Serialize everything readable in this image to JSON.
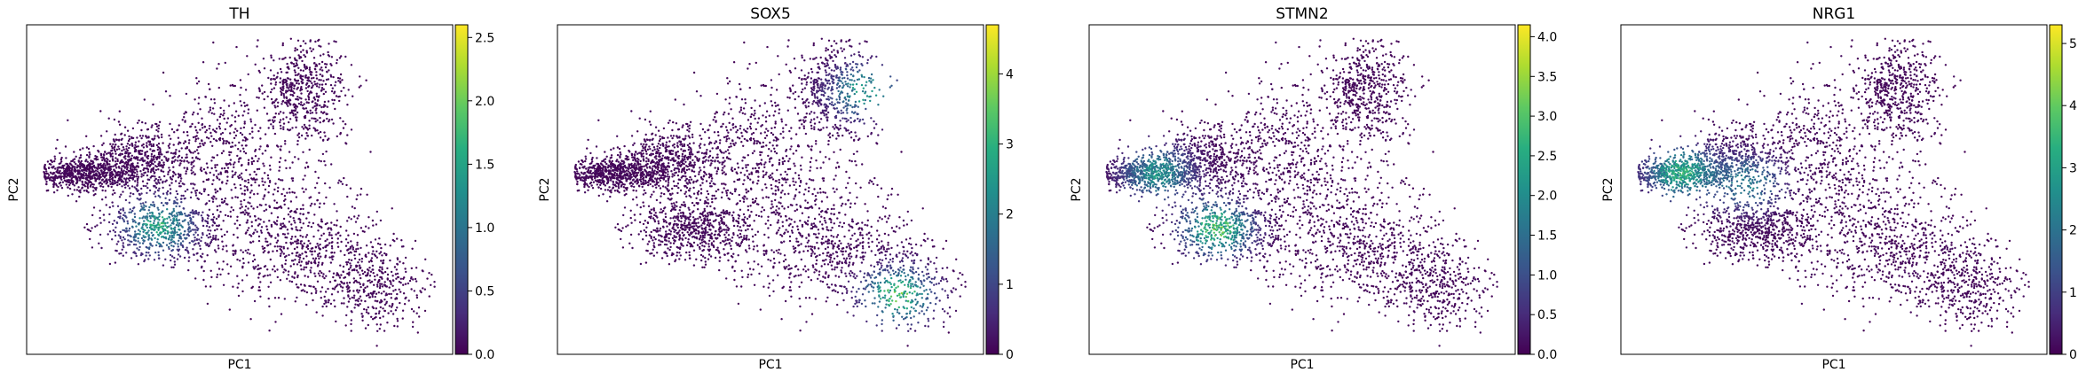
{
  "chart_data": [
    {
      "type": "scatter",
      "title": "TH",
      "xlabel": "PC1",
      "ylabel": "PC2",
      "colorbar": {
        "min": 0,
        "max": 2.6,
        "ticks": [
          "0.0",
          "0.5",
          "1.0",
          "1.5",
          "2.0",
          "2.5"
        ],
        "tick_values": [
          0,
          0.5,
          1.0,
          1.5,
          2.0,
          2.5
        ]
      },
      "colormap": "viridis",
      "grid": false,
      "x_ticks": [],
      "y_ticks": [],
      "high_regions": [
        {
          "cx": 0.31,
          "cy": 0.61,
          "level": 0.7
        }
      ]
    },
    {
      "type": "scatter",
      "title": "SOX5",
      "xlabel": "PC1",
      "ylabel": "PC2",
      "colorbar": {
        "min": 0,
        "max": 4.7,
        "ticks": [
          "0",
          "1",
          "2",
          "3",
          "4"
        ],
        "tick_values": [
          0,
          1,
          2,
          3,
          4
        ]
      },
      "colormap": "viridis",
      "grid": false,
      "x_ticks": [],
      "y_ticks": [],
      "high_regions": [
        {
          "cx": 0.72,
          "cy": 0.2,
          "level": 0.65
        },
        {
          "cx": 0.8,
          "cy": 0.82,
          "level": 0.85
        }
      ]
    },
    {
      "type": "scatter",
      "title": "STMN2",
      "xlabel": "PC1",
      "ylabel": "PC2",
      "colorbar": {
        "min": 0,
        "max": 4.15,
        "ticks": [
          "0.0",
          "0.5",
          "1.0",
          "1.5",
          "2.0",
          "2.5",
          "3.0",
          "3.5",
          "4.0"
        ],
        "tick_values": [
          0,
          0.5,
          1.0,
          1.5,
          2.0,
          2.5,
          3.0,
          3.5,
          4.0
        ]
      },
      "colormap": "viridis",
      "grid": false,
      "x_ticks": [],
      "y_ticks": [],
      "high_regions": [
        {
          "cx": 0.16,
          "cy": 0.45,
          "level": 0.6
        },
        {
          "cx": 0.3,
          "cy": 0.62,
          "level": 0.85
        }
      ]
    },
    {
      "type": "scatter",
      "title": "NRG1",
      "xlabel": "PC1",
      "ylabel": "PC2",
      "colorbar": {
        "min": 0,
        "max": 5.3,
        "ticks": [
          "0",
          "1",
          "2",
          "3",
          "4",
          "5"
        ],
        "tick_values": [
          0,
          1,
          2,
          3,
          4,
          5
        ]
      },
      "colormap": "viridis",
      "grid": false,
      "x_ticks": [],
      "y_ticks": [],
      "high_regions": [
        {
          "cx": 0.14,
          "cy": 0.45,
          "level": 0.75
        },
        {
          "cx": 0.3,
          "cy": 0.48,
          "level": 0.5
        }
      ]
    }
  ]
}
